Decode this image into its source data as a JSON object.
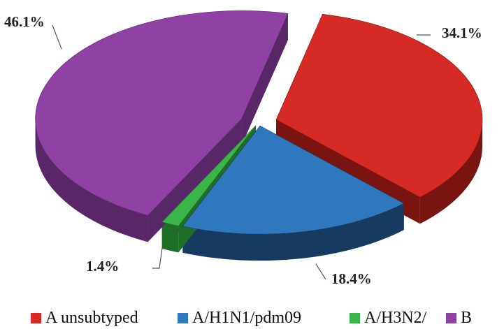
{
  "chart_data": {
    "type": "pie",
    "title": "",
    "three_d": true,
    "exploded": true,
    "legend_position": "bottom",
    "slices": [
      {
        "name": "A unsubtyped",
        "value": 34.1,
        "label": "34.1%",
        "color": "#d62a26",
        "side_color": "#7a1410"
      },
      {
        "name": "A/H1N1/pdm09",
        "value": 18.4,
        "label": "18.4%",
        "color": "#2f78bd",
        "side_color": "#163a60"
      },
      {
        "name": "A/H3N2/",
        "value": 1.4,
        "label": "1.4%",
        "color": "#3bb54a",
        "side_color": "#1f6e28"
      },
      {
        "name": "B",
        "value": 46.1,
        "label": "46.1%",
        "color": "#9042a4",
        "side_color": "#592768"
      }
    ]
  }
}
